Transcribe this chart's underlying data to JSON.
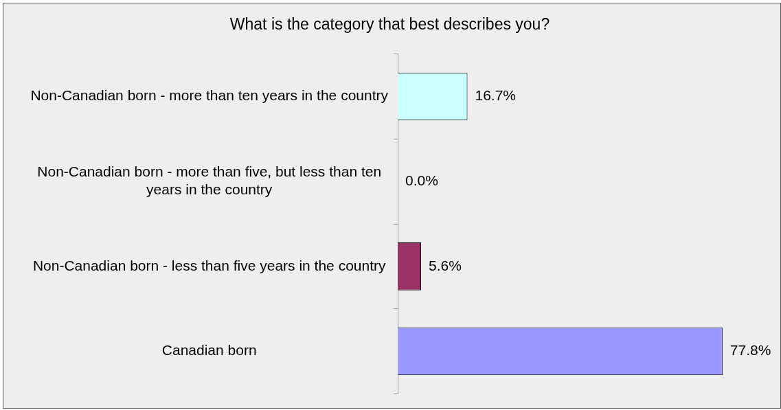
{
  "chart_data": {
    "type": "bar",
    "orientation": "horizontal",
    "title": "What is the category that best describes you?",
    "categories": [
      "Non-Canadian born - more than ten years in the country",
      "Non-Canadian born - more than five, but less than ten years in the country",
      "Non-Canadian born - less than five years in the country",
      "Canadian born"
    ],
    "values": [
      16.7,
      0.0,
      5.6,
      77.8
    ],
    "colors": [
      "#ccffff",
      "#ffffcc",
      "#993366",
      "#9999ff"
    ],
    "value_labels": [
      "16.7%",
      "0.0%",
      "5.6%",
      "77.8%"
    ],
    "legend": false
  }
}
